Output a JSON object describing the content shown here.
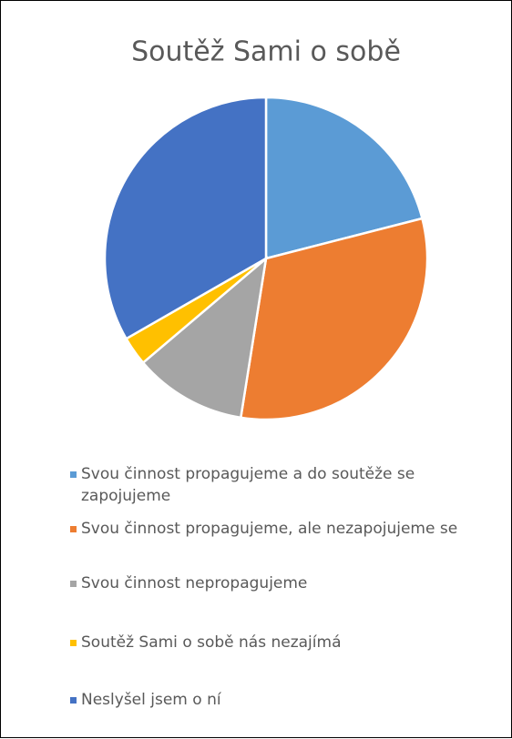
{
  "chart_data": {
    "type": "pie",
    "title": "Soutěž Sami o sobě",
    "categories": [
      "Svou činnost propagujeme a do soutěže se zapojujeme",
      "Svou činnost propagujeme, ale nezapojujeme se",
      "Svou činnost nepropagujeme",
      "Soutěž Sami o sobě nás nezajímá",
      "Neslyšel jsem o ní"
    ],
    "values": [
      21,
      31.5,
      11.3,
      2.9,
      33.3
    ],
    "colors": [
      "#5b9bd5",
      "#ed7d31",
      "#a5a5a5",
      "#ffc000",
      "#4472c4"
    ],
    "legend": "bottom"
  }
}
